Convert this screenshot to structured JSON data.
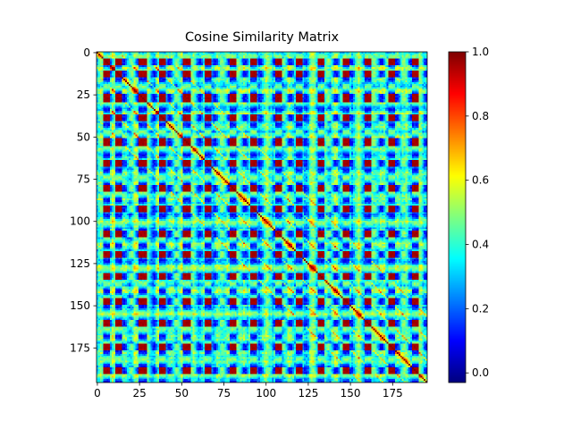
{
  "chart_data": {
    "type": "heatmap",
    "title": "Cosine Similarity Matrix",
    "n": 196,
    "x_ticks": [
      "0",
      "25",
      "50",
      "75",
      "100",
      "125",
      "150",
      "175"
    ],
    "y_ticks": [
      "0",
      "25",
      "50",
      "75",
      "100",
      "125",
      "150",
      "175"
    ],
    "x_tick_values": [
      0,
      25,
      50,
      75,
      100,
      125,
      150,
      175
    ],
    "y_tick_values": [
      0,
      25,
      50,
      75,
      100,
      125,
      150,
      175
    ],
    "colorbar": {
      "colormap": "jet",
      "vmin": -0.03,
      "vmax": 1.0,
      "ticks": [
        "0.0",
        "0.2",
        "0.4",
        "0.6",
        "0.8",
        "1.0"
      ],
      "tick_values": [
        0.0,
        0.2,
        0.4,
        0.6,
        0.8,
        1.0
      ]
    },
    "patterns": {
      "diagonal_value": 1.0,
      "high_block_rows": [
        [
          4,
          7
        ],
        [
          11,
          14
        ],
        [
          25,
          29
        ],
        [
          37,
          40
        ],
        [
          51,
          55
        ],
        [
          64,
          67
        ],
        [
          79,
          82
        ],
        [
          91,
          94
        ],
        [
          106,
          109
        ],
        [
          118,
          121
        ],
        [
          131,
          134
        ],
        [
          146,
          149
        ],
        [
          159,
          162
        ],
        [
          173,
          176
        ],
        [
          187,
          190
        ]
      ],
      "dark_block_value": 0.98,
      "background_value": 0.35
    }
  }
}
